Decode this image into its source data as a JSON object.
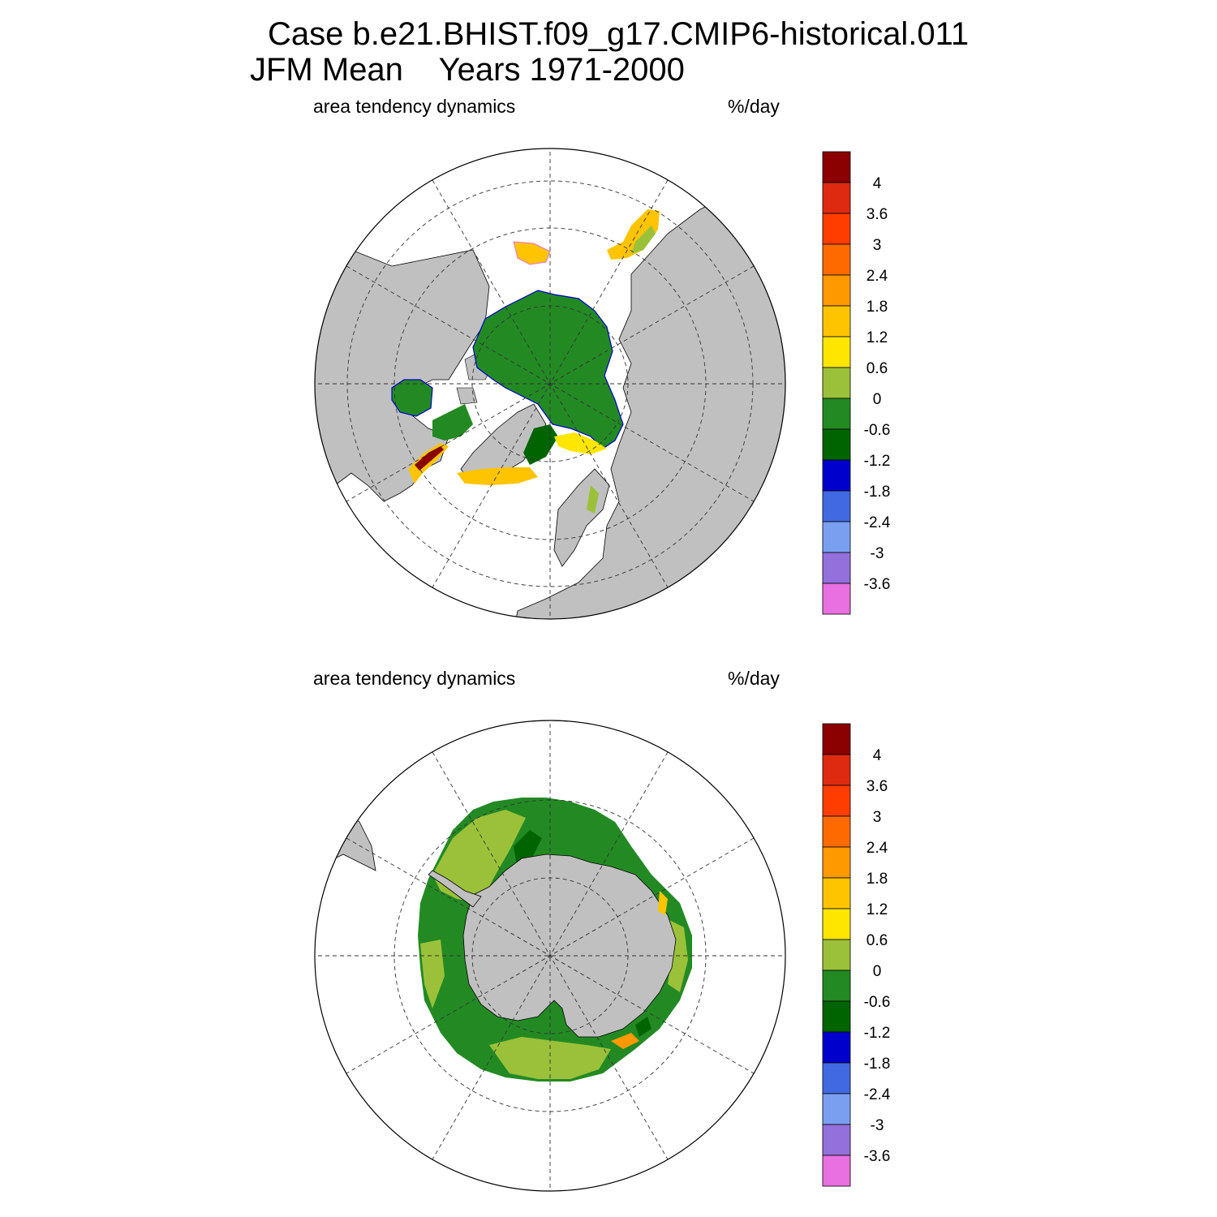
{
  "header": {
    "title_line1": "Case b.e21.BHIST.f09_g17.CMIP6-historical.011",
    "title_line2": "JFM Mean    Years 1971-2000"
  },
  "panels": [
    {
      "id": "arctic",
      "hemisphere": "north",
      "left_label": "area tendency dynamics",
      "right_label": "%/day"
    },
    {
      "id": "antarctic",
      "hemisphere": "south",
      "left_label": "area tendency dynamics",
      "right_label": "%/day"
    }
  ],
  "colorbar": {
    "colors": [
      "#8b0000",
      "#dd2a10",
      "#ff3d00",
      "#ff6a00",
      "#ff9900",
      "#ffc400",
      "#ffe600",
      "#9bc13a",
      "#238a23",
      "#006400",
      "#0000cd",
      "#4169e1",
      "#7b9ff0",
      "#9370db",
      "#e870e0"
    ],
    "labels": [
      "4",
      "3.6",
      "3",
      "2.4",
      "1.8",
      "1.2",
      "0.6",
      "0",
      "-0.6",
      "-1.2",
      "-1.8",
      "-2.4",
      "-3",
      "-3.6"
    ]
  },
  "colors": {
    "land": "#c0c0c0",
    "ocean": "#ffffff",
    "neg_0_6": "#238a23",
    "neg_1_2": "#006400",
    "pos_0_6": "#9bc13a",
    "pos_1_2": "#ffe600",
    "pos_1_8": "#ffc400",
    "pos_2_4": "#ff9900",
    "pos_3": "#ff3d00",
    "pos_4": "#8b0000",
    "neg_1_8": "#0000cd",
    "neg_3_6": "#e870e0"
  }
}
